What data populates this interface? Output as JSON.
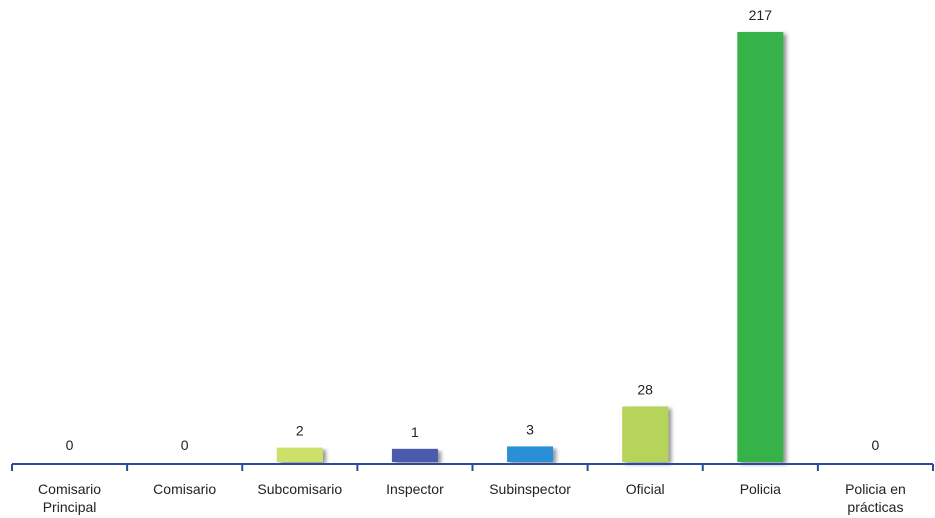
{
  "chart_data": {
    "type": "bar",
    "categories": [
      [
        "Comisario",
        "Principal"
      ],
      [
        "Comisario"
      ],
      [
        "Subcomisario"
      ],
      [
        "Inspector"
      ],
      [
        "Subinspector"
      ],
      [
        "Oficial"
      ],
      [
        "Policia"
      ],
      [
        "Policia en",
        "prácticas"
      ]
    ],
    "values": [
      0,
      0,
      2,
      1,
      3,
      28,
      217,
      0
    ],
    "colors": [
      "#b7d45a",
      "#b7d45a",
      "#cde06a",
      "#4b5aab",
      "#2c8fd6",
      "#b7d45a",
      "#36b34a",
      "#b7d45a"
    ],
    "axis_color": "#2a4a9a",
    "data_labels_shown": true,
    "grid": false,
    "legend": "none",
    "ylim": [
      0,
      217
    ]
  }
}
